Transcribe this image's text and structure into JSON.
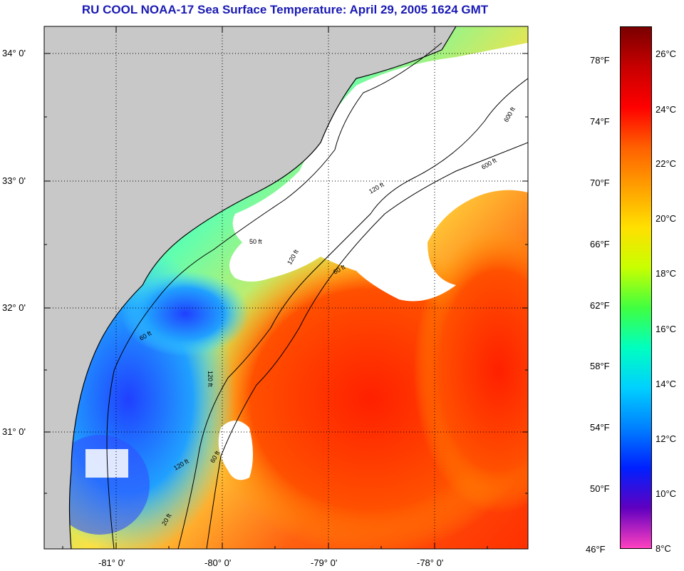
{
  "title": "RU COOL  NOAA-17  Sea Surface Temperature:  April 29, 2005 1624 GMT",
  "map": {
    "lat_ticks": [
      "34° 0'",
      "33° 0'",
      "32° 0'",
      "31° 0'"
    ],
    "lon_ticks": [
      "-81° 0'",
      "-80° 0'",
      "-79° 0'",
      "-78° 0'"
    ],
    "contour_labels": [
      "50 ft",
      "120 ft",
      "600 ft",
      "60 ft",
      "120 ft",
      "60 ft",
      "120 ft",
      "20 ft",
      "60 ft",
      "120 ft",
      "600 ft"
    ],
    "colors": {
      "land": "#c8c8c8",
      "cloud": "#ffffff",
      "ocean_warm": "#ff3000",
      "ocean_cool": "#00c8ff"
    }
  },
  "colorbar": {
    "fahrenheit_labels": [
      "78°F",
      "74°F",
      "70°F",
      "66°F",
      "62°F",
      "58°F",
      "54°F",
      "50°F",
      "46°F"
    ],
    "celsius_labels": [
      "26°C",
      "24°C",
      "22°C",
      "20°C",
      "18°C",
      "16°C",
      "14°C",
      "12°C",
      "10°C",
      "8°C"
    ],
    "gradient_stops": [
      "#7a0000",
      "#c80000",
      "#ff0000",
      "#ff6000",
      "#ffa000",
      "#ffe000",
      "#c8ff00",
      "#40ff40",
      "#00ffc0",
      "#00d0ff",
      "#0080ff",
      "#0020ff",
      "#6000c0",
      "#ff40c0"
    ]
  }
}
